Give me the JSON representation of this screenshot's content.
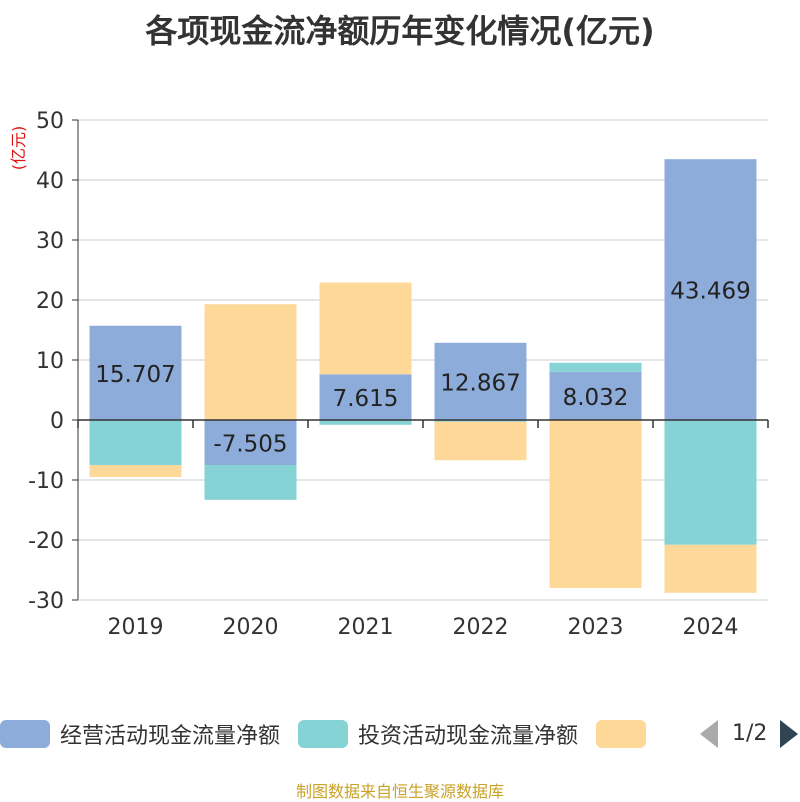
{
  "title": "各项现金流净额历年变化情况(亿元)",
  "unit_label": "(亿元)",
  "source": "制图数据来自恒生聚源数据库",
  "pager": {
    "text": "1/2",
    "prev_icon": "triangle-left-icon",
    "next_icon": "triangle-right-icon"
  },
  "colors": {
    "operating": "#8eacd9",
    "investing": "#86d3d6",
    "financing": "#fdd898",
    "axis": "#333333",
    "grid": "#cccccc",
    "unit": "#e01010"
  },
  "chart_data": {
    "type": "bar",
    "stacked": true,
    "title": "各项现金流净额历年变化情况(亿元)",
    "ylabel": "(亿元)",
    "xlabel": "",
    "categories": [
      "2019",
      "2020",
      "2021",
      "2022",
      "2023",
      "2024"
    ],
    "ylim": [
      -30,
      50
    ],
    "yticks": [
      50,
      40,
      30,
      20,
      10,
      0,
      -10,
      -20,
      -30
    ],
    "grid": true,
    "legend_position": "bottom",
    "series": [
      {
        "name": "经营活动现金流量净额",
        "values": [
          15.707,
          -7.505,
          7.615,
          12.867,
          8.032,
          43.469
        ],
        "labels": [
          "15.707",
          "-7.505",
          "7.615",
          "12.867",
          "8.032",
          "43.469"
        ]
      },
      {
        "name": "投资活动现金流量净额",
        "values": [
          -7.5,
          -5.8,
          -0.8,
          -0.3,
          1.5,
          -20.8
        ]
      },
      {
        "name": "",
        "values": [
          -2.0,
          19.3,
          15.3,
          -6.4,
          -28.0,
          -8.0
        ]
      }
    ]
  }
}
